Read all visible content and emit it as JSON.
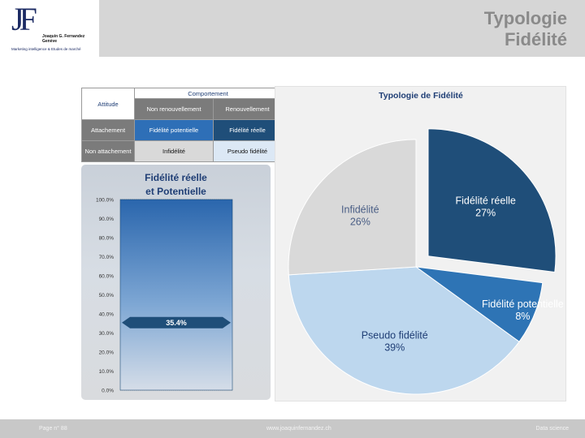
{
  "header": {
    "logo_mark": "JF",
    "logo_name": "Joaquin G. Fernandez Genève",
    "logo_tagline": "Marketing intelligence & Etudes de marché",
    "title_line1": "Typologie",
    "title_line2": "Fidélité"
  },
  "table": {
    "attitude": "Attitude",
    "comportement": "Comportement",
    "non_renouvellement": "Non  renouvellement",
    "renouvellement": "Renouvellement",
    "attachement": "Attachement",
    "fidelite_potentielle": "Fidélité potentielle",
    "fidelite_reelle": "Fidélité réelle",
    "non_attachement": "Non attachement",
    "infidelite": "Infidélité",
    "pseudo_fidelite": "Pseudo fidélité",
    "colors": {
      "header_gray": "#7b7b7b",
      "fidelite_potentielle": "#2e6fb7",
      "fidelite_reelle": "#1f4e79",
      "infidelite": "#d9d9d9",
      "pseudo_fidelite": "#dce8f5"
    }
  },
  "bar_chart": {
    "title_line1": "Fidélité réelle",
    "title_line2": "et Potentielle",
    "value_label": "35.4%",
    "value": 35.4
  },
  "pie_chart": {
    "title": "Typologie de Fidélité"
  },
  "chart_data": [
    {
      "type": "bar",
      "title": "Fidélité réelle et Potentielle",
      "categories": [
        ""
      ],
      "values": [
        100
      ],
      "marker_value": 35.4,
      "marker_label": "35.4%",
      "ylim": [
        0,
        100
      ],
      "yticks": [
        "0.0%",
        "10.0%",
        "20.0%",
        "30.0%",
        "40.0%",
        "50.0%",
        "60.0%",
        "70.0%",
        "80.0%",
        "90.0%",
        "100.0%"
      ],
      "grid": true,
      "colors": {
        "bar_top": "#2a66ad",
        "bar_bottom": "#d5dde8",
        "marker": "#1f4e79"
      }
    },
    {
      "type": "pie",
      "title": "Typologie de Fidélité",
      "slices": [
        {
          "name": "Fidélité réelle",
          "value": 27,
          "label": "27%",
          "color": "#1f4e79",
          "exploded": true
        },
        {
          "name": "Fidélité potentielle",
          "value": 8,
          "label": "8%",
          "color": "#2e74b5"
        },
        {
          "name": "Pseudo fidélité",
          "value": 39,
          "label": "39%",
          "color": "#bdd7ee"
        },
        {
          "name": "Infidélité",
          "value": 26,
          "label": "26%",
          "color": "#d9d9d9"
        }
      ]
    }
  ],
  "footer": {
    "page": "Page n° 88",
    "url": "www.joaquinfernandez.ch",
    "section": "Data science"
  }
}
